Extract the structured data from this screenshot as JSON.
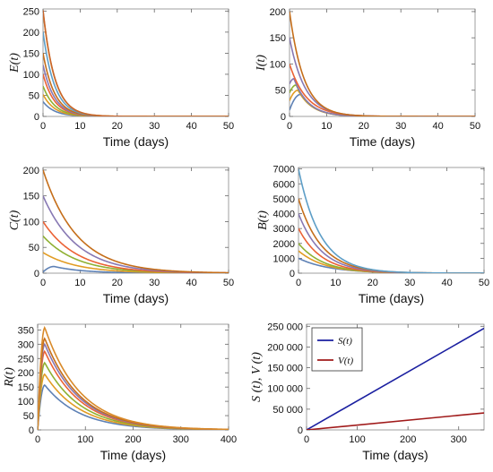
{
  "chart_data": [
    {
      "type": "line",
      "ylabel": "E(t)",
      "xlabel": "Time (days)",
      "xlim": [
        0,
        50
      ],
      "ylim": [
        0,
        255
      ],
      "xticks": [
        0,
        10,
        20,
        30,
        40,
        50
      ],
      "yticks": [
        0,
        50,
        100,
        150,
        200,
        250
      ],
      "series": [
        {
          "color": "#5E81B5",
          "kind": "decay",
          "y0": 35,
          "rate": 0.32
        },
        {
          "color": "#E19C24",
          "kind": "decay",
          "y0": 52,
          "rate": 0.32
        },
        {
          "color": "#8FB032",
          "kind": "decay",
          "y0": 72,
          "rate": 0.32
        },
        {
          "color": "#EB6235",
          "kind": "decay",
          "y0": 100,
          "rate": 0.32
        },
        {
          "color": "#8778B3",
          "kind": "decay",
          "y0": 122,
          "rate": 0.32
        },
        {
          "color": "#C56E1A",
          "kind": "decay",
          "y0": 150,
          "rate": 0.32
        },
        {
          "color": "#5D9EC7",
          "kind": "decay",
          "y0": 200,
          "rate": 0.32
        },
        {
          "color": "#E5A820",
          "kind": "decay",
          "y0": 250,
          "rate": 0.32
        },
        {
          "color": "#C8642C",
          "kind": "decay",
          "y0": 252,
          "rate": 0.32
        }
      ]
    },
    {
      "type": "line",
      "ylabel": "I(t)",
      "xlabel": "Time (days)",
      "xlim": [
        0,
        50
      ],
      "ylim": [
        0,
        205
      ],
      "xticks": [
        0,
        10,
        20,
        30,
        40,
        50
      ],
      "yticks": [
        0,
        50,
        100,
        150,
        200
      ],
      "series": [
        {
          "color": "#5E81B5",
          "kind": "rise",
          "y0": 12,
          "peak": 42,
          "tpeak": 3.0
        },
        {
          "color": "#E19C24",
          "kind": "rise",
          "y0": 30,
          "peak": 50,
          "tpeak": 2.3
        },
        {
          "color": "#8FB032",
          "kind": "rise",
          "y0": 45,
          "peak": 60,
          "tpeak": 1.8
        },
        {
          "color": "#8778B3",
          "kind": "rise",
          "y0": 62,
          "peak": 72,
          "tpeak": 1.2
        },
        {
          "color": "#EB6235",
          "kind": "decay",
          "y0": 100,
          "rate": 0.22
        },
        {
          "color": "#8778B3",
          "kind": "decay",
          "y0": 150,
          "rate": 0.24
        },
        {
          "color": "#C56E1A",
          "kind": "decay",
          "y0": 200,
          "rate": 0.26
        }
      ]
    },
    {
      "type": "line",
      "ylabel": "C(t)",
      "xlabel": "Time (days)",
      "xlim": [
        0,
        50
      ],
      "ylim": [
        0,
        205
      ],
      "xticks": [
        0,
        10,
        20,
        30,
        40,
        50
      ],
      "yticks": [
        0,
        50,
        100,
        150,
        200
      ],
      "series": [
        {
          "color": "#5E81B5",
          "kind": "rise",
          "y0": 2,
          "peak": 13,
          "tpeak": 3.0,
          "rate": 0.13
        },
        {
          "color": "#E19C24",
          "kind": "decay",
          "y0": 40,
          "rate": 0.11
        },
        {
          "color": "#8FB032",
          "kind": "decay",
          "y0": 72,
          "rate": 0.11
        },
        {
          "color": "#EB6235",
          "kind": "decay",
          "y0": 100,
          "rate": 0.11
        },
        {
          "color": "#8778B3",
          "kind": "decay",
          "y0": 150,
          "rate": 0.11
        },
        {
          "color": "#C56E1A",
          "kind": "decay",
          "y0": 200,
          "rate": 0.11
        }
      ]
    },
    {
      "type": "line",
      "ylabel": "B(t)",
      "xlabel": "Time (days)",
      "xlim": [
        0,
        50
      ],
      "ylim": [
        0,
        7100
      ],
      "xticks": [
        0,
        10,
        20,
        30,
        40,
        50
      ],
      "yticks": [
        0,
        1000,
        2000,
        3000,
        4000,
        5000,
        6000,
        7000
      ],
      "series": [
        {
          "color": "#5E81B5",
          "kind": "decay",
          "y0": 1000,
          "rate": 0.12
        },
        {
          "color": "#E19C24",
          "kind": "decay",
          "y0": 1500,
          "rate": 0.14
        },
        {
          "color": "#8FB032",
          "kind": "decay",
          "y0": 2000,
          "rate": 0.15
        },
        {
          "color": "#EB6235",
          "kind": "decay",
          "y0": 3000,
          "rate": 0.16
        },
        {
          "color": "#8778B3",
          "kind": "decay",
          "y0": 4000,
          "rate": 0.16
        },
        {
          "color": "#C56E1A",
          "kind": "decay",
          "y0": 5000,
          "rate": 0.16
        },
        {
          "color": "#5D9EC7",
          "kind": "decay",
          "y0": 7000,
          "rate": 0.17
        }
      ]
    },
    {
      "type": "line",
      "ylabel": "R(t)",
      "xlabel": "Time (days)",
      "xlim": [
        0,
        400
      ],
      "ylim": [
        0,
        370
      ],
      "xticks": [
        0,
        100,
        200,
        300,
        400
      ],
      "yticks": [
        0,
        50,
        100,
        150,
        200,
        250,
        300,
        350
      ],
      "series": [
        {
          "color": "#5E81B5",
          "kind": "hump",
          "peak": 157,
          "tpeak": 15,
          "rate": 0.0135
        },
        {
          "color": "#E19C24",
          "kind": "hump",
          "peak": 195,
          "tpeak": 15,
          "rate": 0.0135
        },
        {
          "color": "#8FB032",
          "kind": "hump",
          "peak": 235,
          "tpeak": 15,
          "rate": 0.0135
        },
        {
          "color": "#EB6235",
          "kind": "hump",
          "peak": 275,
          "tpeak": 15,
          "rate": 0.0135
        },
        {
          "color": "#8778B3",
          "kind": "hump",
          "peak": 300,
          "tpeak": 15,
          "rate": 0.0135
        },
        {
          "color": "#C56E1A",
          "kind": "hump",
          "peak": 320,
          "tpeak": 15,
          "rate": 0.0135
        },
        {
          "color": "#D98A2A",
          "kind": "hump",
          "peak": 358,
          "tpeak": 15,
          "rate": 0.0135
        }
      ]
    },
    {
      "type": "line",
      "ylabel": "S (t),  V (t)",
      "xlabel": "Time (days)",
      "xlim": [
        0,
        350
      ],
      "ylim": [
        0,
        255000
      ],
      "xticks": [
        0,
        100,
        200,
        300
      ],
      "yticks": [
        0,
        50000,
        100000,
        150000,
        200000,
        250000
      ],
      "ytick_labels": [
        "0",
        "50 000",
        "100 000",
        "150 000",
        "200 000",
        "250 000"
      ],
      "legend_position": "top-left",
      "series": [
        {
          "name": "S(t)",
          "color": "#1A1FA0",
          "kind": "linear",
          "x": [
            0,
            350
          ],
          "values": [
            0,
            245000
          ]
        },
        {
          "name": "V(t)",
          "color": "#A01A1A",
          "kind": "linear",
          "x": [
            0,
            350
          ],
          "values": [
            0,
            41000
          ]
        }
      ]
    }
  ]
}
